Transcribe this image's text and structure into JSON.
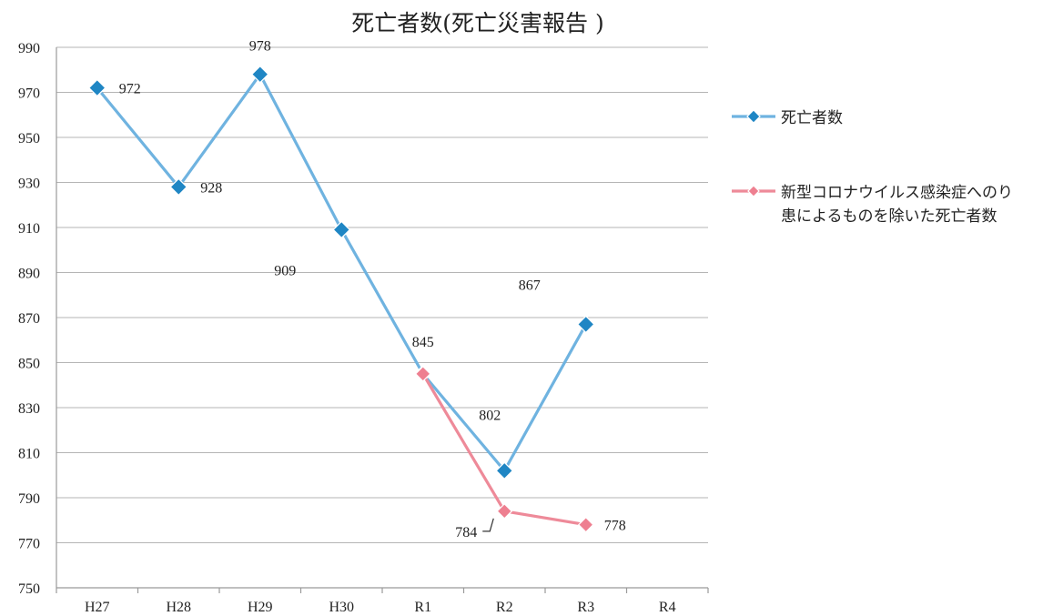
{
  "chart_data": {
    "type": "line",
    "title": "死亡者数(死亡災害報告 )",
    "categories": [
      "H27",
      "H28",
      "H29",
      "H30",
      "R1",
      "R2",
      "R3",
      "R4"
    ],
    "ylim": [
      750,
      990
    ],
    "yticks": [
      750,
      770,
      790,
      810,
      830,
      850,
      870,
      890,
      910,
      930,
      950,
      970,
      990
    ],
    "grid": true,
    "legend_position": "right",
    "series": [
      {
        "name": "死亡者数",
        "color": "#6fb3e0",
        "marker_color": "#1f86c4",
        "values": [
          972,
          928,
          978,
          909,
          845,
          802,
          867,
          null
        ],
        "labels": [
          "972",
          "928",
          "978",
          "909",
          "845",
          "802",
          "867",
          ""
        ]
      },
      {
        "name_lines": [
          "新型コロナウイルス感染症へのり",
          "患によるものを除いた死亡者数"
        ],
        "color": "#ee8a99",
        "marker_color": "#ee7f90",
        "values": [
          null,
          null,
          null,
          null,
          845,
          784,
          778,
          null
        ],
        "labels": [
          "",
          "",
          "",
          "",
          "",
          "784",
          "778",
          ""
        ]
      }
    ]
  }
}
